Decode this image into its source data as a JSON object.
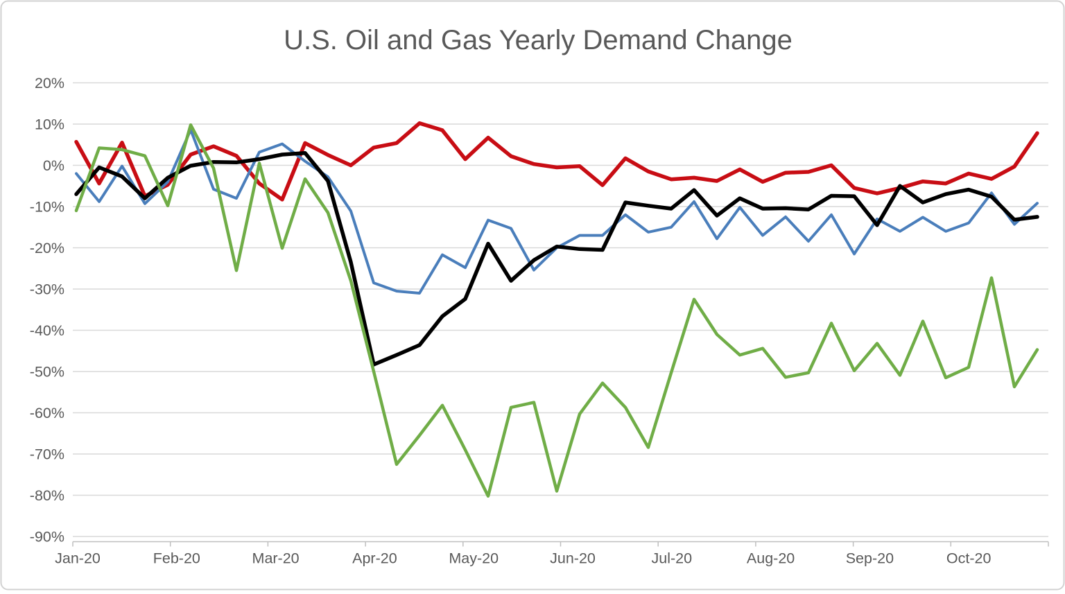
{
  "title": "U.S. Oil and Gas Yearly Demand Change",
  "colors": {
    "title_text": "#595959",
    "axis_text": "#595959",
    "gridline": "#d9d9d9",
    "axis_line": "#bfbfbf",
    "background": "#ffffff",
    "border": "#d2d2d2"
  },
  "chart_data": {
    "type": "line",
    "title": "U.S. Oil and Gas Yearly Demand Change",
    "frequency": "weekly",
    "legend": "none",
    "grid": "horizontal",
    "xlabel": "",
    "ylabel": "",
    "x_axis": {
      "tick_labels": [
        "Jan-20",
        "Feb-20",
        "Mar-20",
        "Apr-20",
        "May-20",
        "Jun-20",
        "Jul-20",
        "Aug-20",
        "Sep-20",
        "Oct-20"
      ]
    },
    "y_axis": {
      "min": -90,
      "max": 20,
      "step": 10,
      "unit": "%",
      "tick_labels": [
        "20%",
        "10%",
        "0%",
        "-10%",
        "-20%",
        "-30%",
        "-40%",
        "-50%",
        "-60%",
        "-70%",
        "-80%",
        "-90%"
      ]
    },
    "series": [
      {
        "name": "red-series",
        "color": "#c80d14",
        "stroke_width": 5.5,
        "values": [
          5.7,
          -4.4,
          5.5,
          -7.5,
          -4.7,
          2.6,
          4.6,
          2.3,
          -4.4,
          -8.3,
          5.4,
          2.5,
          0,
          4.3,
          5.4,
          10.2,
          8.5,
          1.5,
          6.7,
          2.2,
          0.3,
          -0.5,
          -0.2,
          -4.8,
          1.7,
          -1.5,
          -3.4,
          -3,
          -3.8,
          -1,
          -4,
          -1.8,
          -1.6,
          0,
          -5.5,
          -6.8,
          -5.5,
          -3.9,
          -4.4,
          -2,
          -3.3,
          -0.3,
          7.8
        ]
      },
      {
        "name": "blue-series",
        "color": "#4a7ebb",
        "stroke_width": 4,
        "values": [
          -2,
          -8.8,
          -0.2,
          -9.3,
          -4,
          8.6,
          -5.8,
          -8,
          3.2,
          5.2,
          1,
          -2.8,
          -11.1,
          -28.5,
          -30.5,
          -31,
          -21.7,
          -24.8,
          -13.3,
          -15.3,
          -25.4,
          -20,
          -17,
          -17,
          -12,
          -16.2,
          -15,
          -8.8,
          -17.8,
          -10.2,
          -17,
          -12.5,
          -18.4,
          -12,
          -21.5,
          -13,
          -16,
          -12.6,
          -16,
          -14,
          -6.7,
          -14.3,
          -9.2
        ]
      },
      {
        "name": "black-series",
        "color": "#000000",
        "stroke_width": 5.5,
        "values": [
          -7,
          -0.5,
          -2.7,
          -8,
          -3,
          -0.1,
          0.8,
          0.7,
          1.5,
          2.6,
          3,
          -3.8,
          -23.5,
          -48.3,
          -46,
          -43.6,
          -36.6,
          -32.4,
          -19,
          -28,
          -23,
          -19.7,
          -20.3,
          -20.5,
          -9,
          -9.8,
          -10.5,
          -6,
          -12.2,
          -8,
          -10.5,
          -10.4,
          -10.7,
          -7.4,
          -7.5,
          -14.5,
          -5,
          -9,
          -7,
          -5.9,
          -7.6,
          -13.2,
          -12.5
        ]
      },
      {
        "name": "green-series",
        "color": "#70ad47",
        "stroke_width": 4.5,
        "values": [
          -11,
          4.2,
          3.8,
          2.3,
          -9.8,
          9.8,
          -0.7,
          -25.5,
          0.5,
          -20.1,
          -3.3,
          -11.5,
          -28,
          -50,
          -72.5,
          -65.5,
          -58.2,
          -69,
          -80.2,
          -58.7,
          -57.5,
          -79,
          -60.3,
          -52.8,
          -58.7,
          -68.4,
          -50.3,
          -32.5,
          -41,
          -46,
          -44.4,
          -51.4,
          -50.3,
          -38.3,
          -49.8,
          -43.2,
          -50.9,
          -37.8,
          -51.5,
          -49,
          -27.3,
          -53.7,
          -44.7
        ]
      }
    ]
  }
}
